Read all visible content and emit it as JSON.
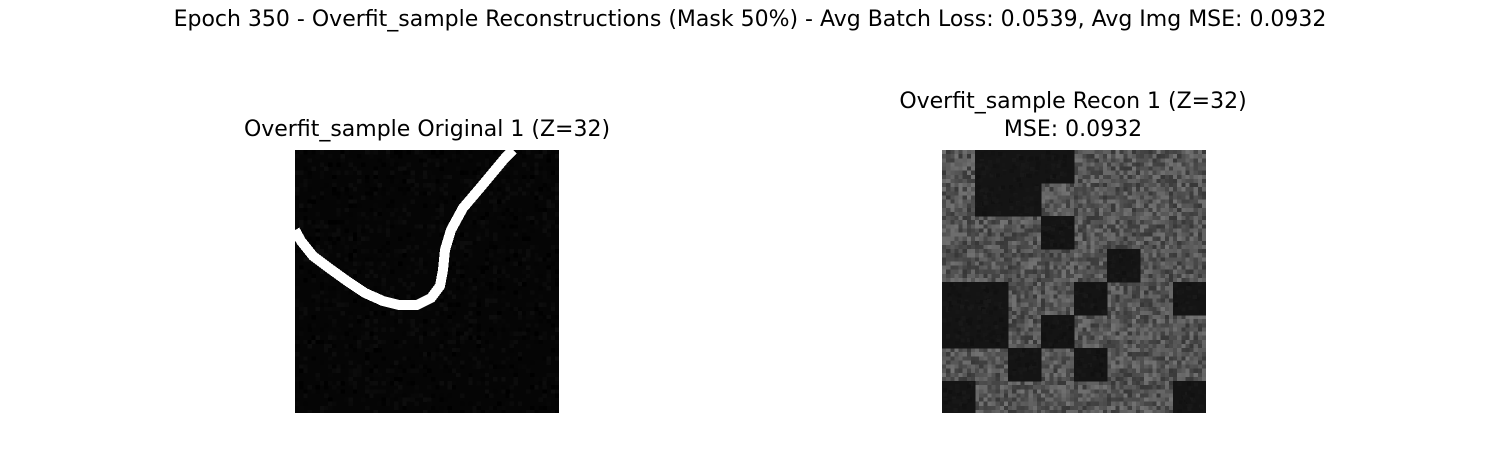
{
  "figure": {
    "suptitle": "Epoch 350 - Overfit_sample Reconstructions (Mask 50%) - Avg Batch Loss: 0.0539, Avg Img MSE: 0.0932"
  },
  "panels": [
    {
      "title": "Overfit_sample Original 1 (Z=32)",
      "subtitle": "",
      "image": "binary-stroke-image",
      "colors": {
        "background": "#050505",
        "stroke": "#ffffff"
      }
    },
    {
      "title": "Overfit_sample Recon 1 (Z=32)",
      "subtitle": "MSE: 0.0932",
      "image": "masked-patch-reconstruction",
      "colors": {
        "dark_patch": "#141414",
        "noise_patch": "#555555"
      }
    }
  ]
}
